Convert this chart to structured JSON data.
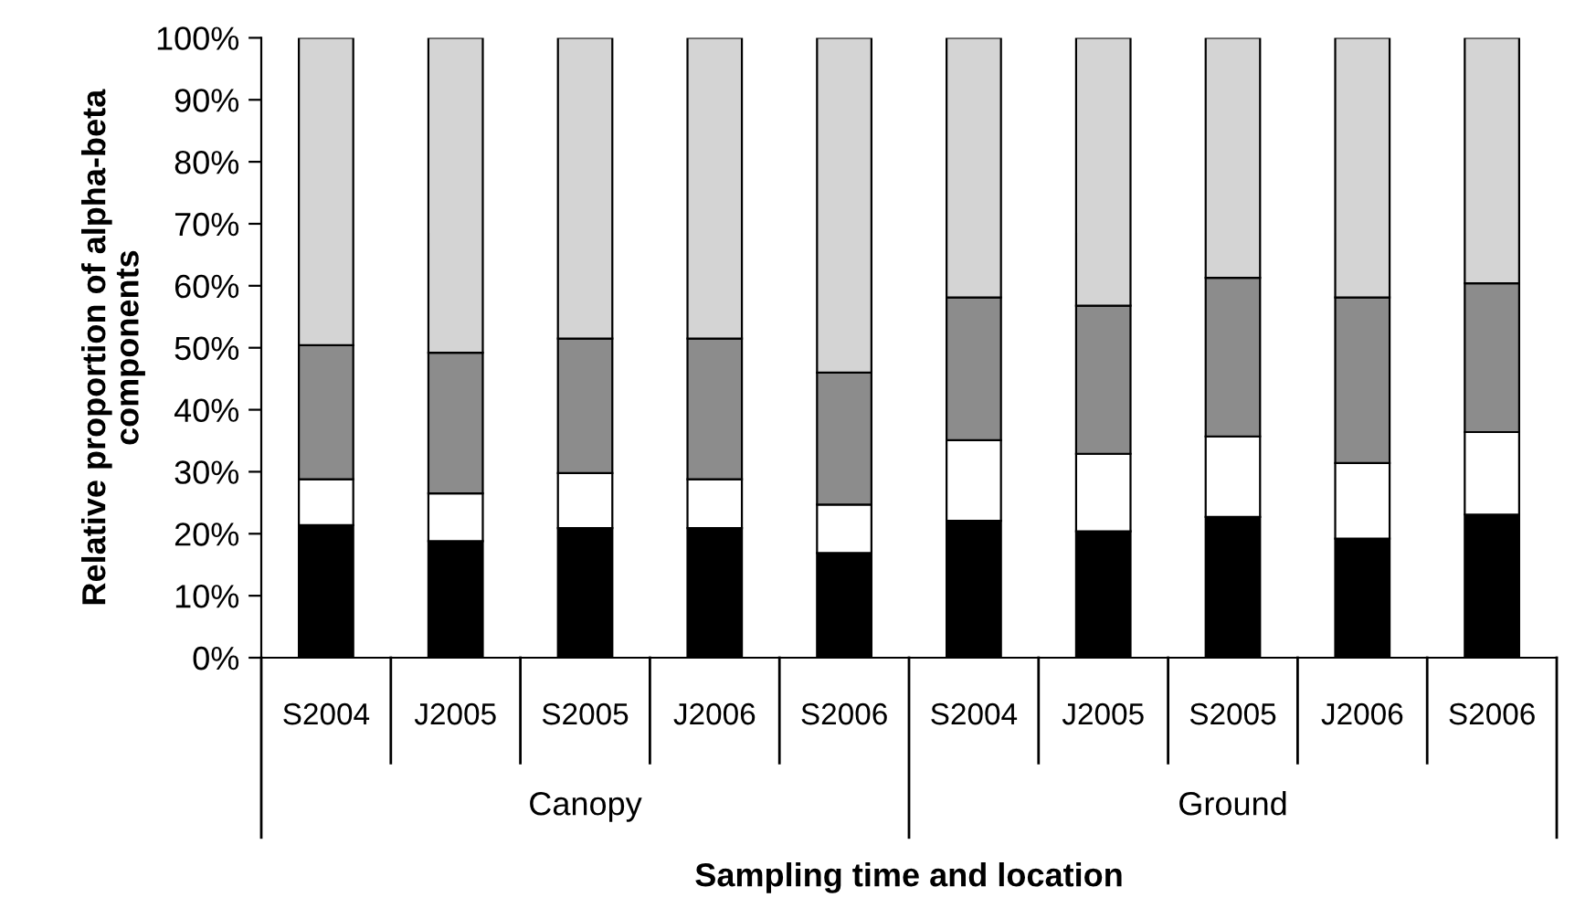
{
  "chart_data": {
    "type": "bar",
    "stacked": true,
    "xlabel": "Sampling time and location",
    "ylabel": "Relative proportion of alpha-beta\ncomponents",
    "categories": [
      "S2004",
      "J2005",
      "S2005",
      "J2006",
      "S2006",
      "S2004",
      "J2005",
      "S2005",
      "J2006",
      "S2006"
    ],
    "annotations": [
      "Canopy",
      "Ground"
    ],
    "series": [
      {
        "color": "#000000",
        "values": [
          21.4,
          18.8,
          20.9,
          20.9,
          16.9,
          22.1,
          20.4,
          22.7,
          19.2,
          23.1
        ]
      },
      {
        "color": "#ffffff",
        "values": [
          7.4,
          7.7,
          8.9,
          7.9,
          7.8,
          13.0,
          12.5,
          13.0,
          12.2,
          13.3
        ]
      },
      {
        "color": "#8c8c8c",
        "values": [
          21.6,
          22.7,
          21.7,
          22.7,
          21.3,
          23.0,
          23.9,
          25.6,
          26.7,
          24.0
        ]
      },
      {
        "color": "#d4d4d4",
        "values": [
          49.6,
          50.8,
          48.5,
          48.5,
          54.0,
          41.9,
          43.2,
          38.7,
          41.9,
          39.6
        ]
      }
    ],
    "ylim": [
      0,
      100
    ],
    "yticks": [
      {
        "value": 0,
        "label": "0%"
      },
      {
        "value": 10,
        "label": "10%"
      },
      {
        "value": 20,
        "label": "20%"
      },
      {
        "value": 30,
        "label": "30%"
      },
      {
        "value": 40,
        "label": "40%"
      },
      {
        "value": 50,
        "label": "50%"
      },
      {
        "value": 60,
        "label": "60%"
      },
      {
        "value": 70,
        "label": "70%"
      },
      {
        "value": 80,
        "label": "80%"
      },
      {
        "value": 90,
        "label": "90%"
      },
      {
        "value": 100,
        "label": "100%"
      }
    ],
    "grid": false,
    "legend": false
  }
}
